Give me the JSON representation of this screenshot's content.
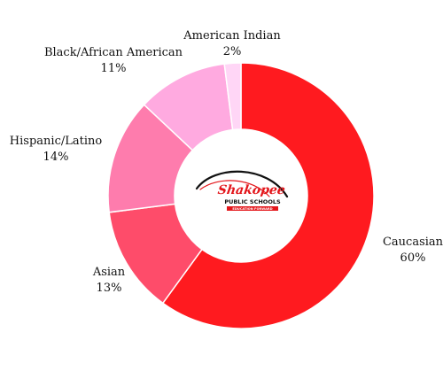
{
  "chart_data": {
    "type": "pie",
    "variant": "donut",
    "title": "",
    "categories": [
      "Caucasian",
      "Asian",
      "Hispanic/Latino",
      "Black/African American",
      "American Indian"
    ],
    "values": [
      60,
      13,
      14,
      11,
      2
    ],
    "value_labels": [
      "60%",
      "13%",
      "14%",
      "11%",
      "2%"
    ],
    "colors": [
      "#ff1a1f",
      "#fe4c6a",
      "#fe7cad",
      "#ffaae0",
      "#ffd6f6"
    ],
    "legend": "none",
    "data_labels": "outside"
  },
  "logo": {
    "wordmark": "Shakopee",
    "subtitle": "PUBLIC SCHOOLS",
    "tagline": "EDUCATION FORWARD",
    "colors": {
      "primary": "#e3161b",
      "secondary": "#111111"
    }
  }
}
